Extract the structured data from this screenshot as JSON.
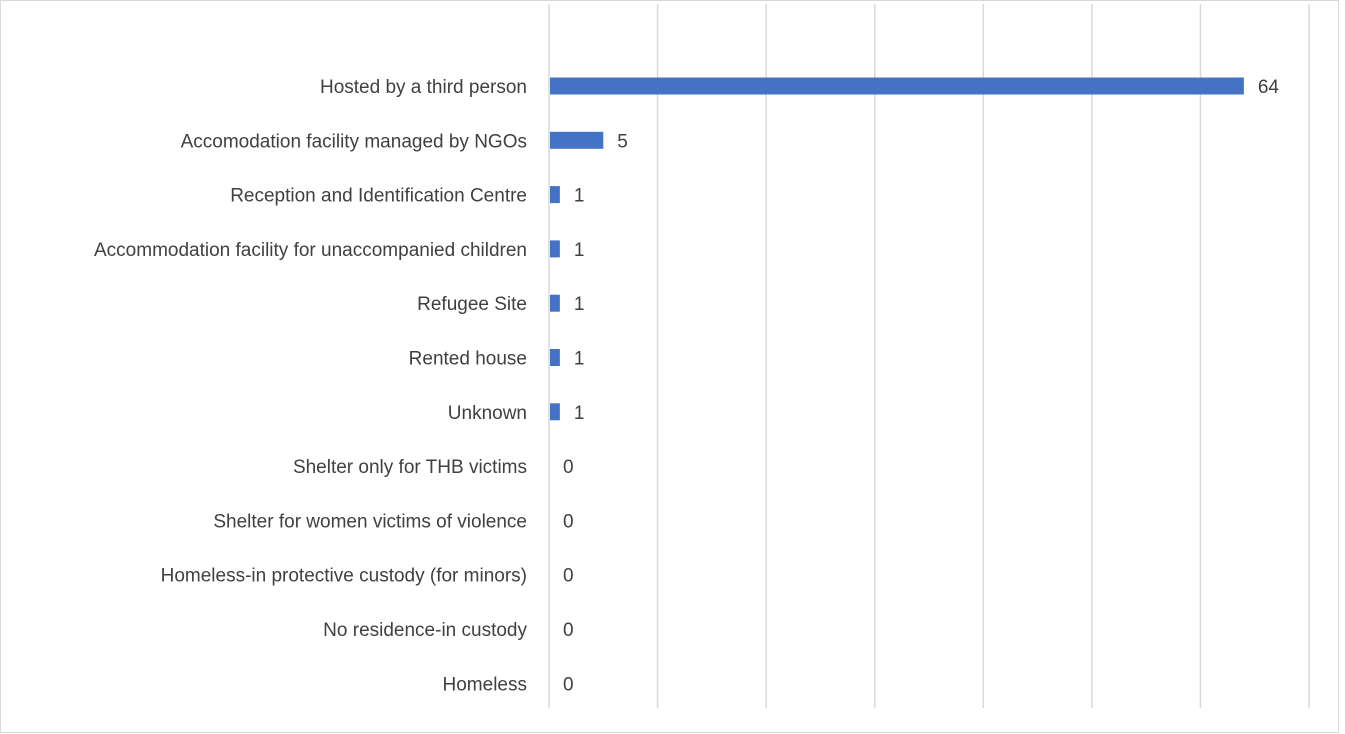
{
  "chart_data": {
    "type": "bar",
    "orientation": "horizontal",
    "categories": [
      "Hosted by a third person",
      "Accomodation facility managed by NGOs",
      "Reception and Identification Centre",
      "Accommodation facility for unaccompanied children",
      "Refugee Site",
      "Rented house",
      "Unknown",
      "Shelter only for THB victims",
      "Shelter for women victims of violence",
      "Homeless-in protective custody (for minors)",
      "No residence-in custody",
      "Homeless"
    ],
    "values": [
      64,
      5,
      1,
      1,
      1,
      1,
      1,
      0,
      0,
      0,
      0,
      0
    ],
    "xlim": [
      0,
      70
    ],
    "grid": true,
    "data_labels": true,
    "legend": false,
    "bar_color": "#4472c4",
    "grid_color": "#d9d9d9",
    "label_color": "#404040"
  }
}
